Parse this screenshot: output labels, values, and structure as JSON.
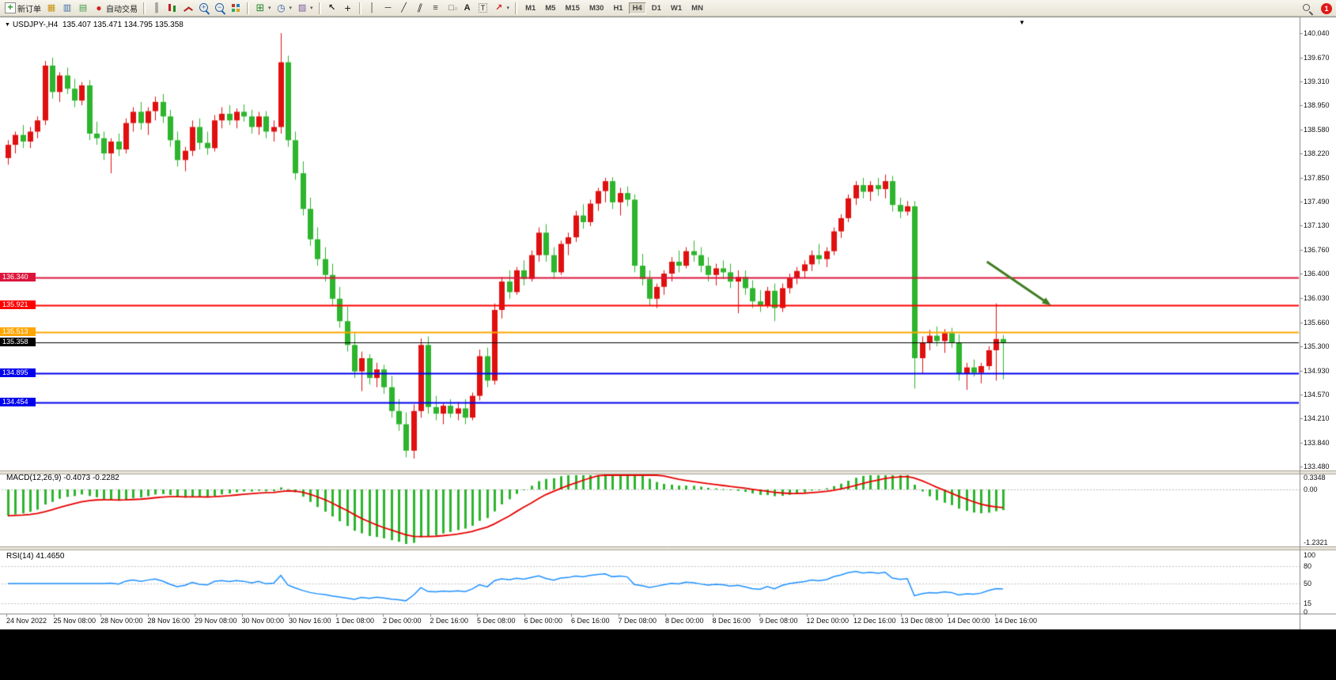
{
  "toolbar": {
    "items": [
      {
        "name": "new-order-button",
        "icon": "new-order-icon",
        "label": "新订单"
      },
      {
        "name": "open-chart-button",
        "icon": "chart-window-icon"
      },
      {
        "name": "market-watch-button",
        "icon": "market-watch-icon"
      },
      {
        "name": "navigator-button",
        "icon": "navigator-icon"
      },
      {
        "name": "autotrading-button",
        "icon": "autotrading-icon",
        "label": "自动交易"
      },
      {
        "sep": true
      },
      {
        "name": "bar-chart-button",
        "icon": "bar-chart-icon"
      },
      {
        "name": "candlestick-chart-button",
        "icon": "candlestick-icon"
      },
      {
        "name": "line-chart-button",
        "icon": "line-chart-icon"
      },
      {
        "name": "zoom-in-button",
        "icon": "zoom-in-icon"
      },
      {
        "name": "zoom-out-button",
        "icon": "zoom-out-icon"
      },
      {
        "name": "tile-windows-button",
        "icon": "tile-windows-icon"
      },
      {
        "sep": true
      },
      {
        "name": "indicators-button",
        "icon": "indicators-icon",
        "dropdown": true
      },
      {
        "name": "periods-button",
        "icon": "clock-icon",
        "dropdown": true
      },
      {
        "name": "templates-button",
        "icon": "template-icon",
        "dropdown": true
      },
      {
        "sep": true
      },
      {
        "name": "cursor-button",
        "icon": "cursor-icon"
      },
      {
        "name": "crosshair-button",
        "icon": "crosshair-icon"
      },
      {
        "sep": true
      },
      {
        "name": "vertical-line-button",
        "icon": "vertical-line-icon"
      },
      {
        "name": "horizontal-line-button",
        "icon": "horizontal-line-icon"
      },
      {
        "name": "trendline-button",
        "icon": "trendline-icon"
      },
      {
        "name": "channel-button",
        "icon": "channel-icon"
      },
      {
        "name": "fibonacci-button",
        "icon": "fibonacci-icon"
      },
      {
        "name": "shapes-button",
        "icon": "shapes-icon"
      },
      {
        "name": "text-button",
        "icon": "text-icon"
      },
      {
        "name": "label-button",
        "icon": "text-label-icon"
      },
      {
        "name": "arrows-button",
        "icon": "arrow-stamps-icon",
        "dropdown": true
      },
      {
        "sep": true
      }
    ],
    "timeframes": [
      "M1",
      "M5",
      "M15",
      "M30",
      "H1",
      "H4",
      "D1",
      "W1",
      "MN"
    ],
    "active_timeframe": "H4",
    "notification_badge": "1"
  },
  "chart_data": {
    "type": "candlestick",
    "symbol": "USDJPY-",
    "timeframe": "H4",
    "title_symbol": "USDJPY-,H4",
    "title_ohlc": "135.407 135.471 134.795 135.358",
    "current_ohlc": {
      "open": 135.407,
      "high": 135.471,
      "low": 134.795,
      "close": 135.358
    },
    "up_color": "#e01010",
    "down_color": "#2db52d",
    "y_axis_ticks": [
      "140.040",
      "139.670",
      "139.310",
      "138.950",
      "138.580",
      "138.220",
      "137.850",
      "137.490",
      "137.130",
      "136.760",
      "136.400",
      "136.030",
      "135.660",
      "135.300",
      "134.930",
      "134.570",
      "134.210",
      "133.840",
      "133.480"
    ],
    "x_axis_labels": [
      "24 Nov 2022",
      "25 Nov 08:00",
      "28 Nov 00:00",
      "28 Nov 16:00",
      "29 Nov 08:00",
      "30 Nov 00:00",
      "30 Nov 16:00",
      "1 Dec 08:00",
      "2 Dec 00:00",
      "2 Dec 16:00",
      "5 Dec 08:00",
      "6 Dec 00:00",
      "6 Dec 16:00",
      "7 Dec 08:00",
      "8 Dec 00:00",
      "8 Dec 16:00",
      "9 Dec 08:00",
      "12 Dec 00:00",
      "12 Dec 16:00",
      "13 Dec 08:00",
      "14 Dec 00:00",
      "14 Dec 16:00"
    ],
    "candles": [
      [
        138.15,
        138.42,
        138.05,
        138.35
      ],
      [
        138.35,
        138.55,
        138.22,
        138.5
      ],
      [
        138.5,
        138.65,
        138.3,
        138.4
      ],
      [
        138.4,
        138.62,
        138.3,
        138.55
      ],
      [
        138.55,
        138.78,
        138.45,
        138.72
      ],
      [
        138.72,
        139.62,
        138.65,
        139.55
      ],
      [
        139.55,
        139.67,
        139.05,
        139.15
      ],
      [
        139.15,
        139.45,
        139.0,
        139.4
      ],
      [
        139.4,
        139.52,
        139.12,
        139.2
      ],
      [
        139.2,
        139.35,
        138.92,
        139.02
      ],
      [
        139.02,
        139.3,
        138.95,
        139.25
      ],
      [
        139.25,
        139.33,
        138.42,
        138.52
      ],
      [
        138.52,
        138.7,
        138.35,
        138.45
      ],
      [
        138.45,
        138.55,
        138.12,
        138.22
      ],
      [
        138.22,
        138.45,
        137.92,
        138.4
      ],
      [
        138.4,
        138.52,
        138.18,
        138.28
      ],
      [
        138.28,
        138.75,
        138.22,
        138.68
      ],
      [
        138.68,
        138.92,
        138.55,
        138.85
      ],
      [
        138.85,
        139.0,
        138.58,
        138.68
      ],
      [
        138.68,
        138.92,
        138.5,
        138.86
      ],
      [
        138.86,
        139.08,
        138.72,
        139.0
      ],
      [
        139.0,
        139.12,
        138.68,
        138.78
      ],
      [
        138.78,
        138.88,
        138.32,
        138.42
      ],
      [
        138.42,
        138.55,
        138.02,
        138.12
      ],
      [
        138.12,
        138.32,
        137.95,
        138.26
      ],
      [
        138.26,
        138.72,
        138.18,
        138.62
      ],
      [
        138.62,
        138.75,
        138.28,
        138.38
      ],
      [
        138.38,
        138.55,
        138.2,
        138.3
      ],
      [
        138.3,
        138.8,
        138.25,
        138.72
      ],
      [
        138.72,
        138.92,
        138.6,
        138.82
      ],
      [
        138.82,
        138.95,
        138.65,
        138.72
      ],
      [
        138.72,
        138.9,
        138.6,
        138.85
      ],
      [
        138.85,
        138.96,
        138.7,
        138.78
      ],
      [
        138.78,
        138.88,
        138.52,
        138.62
      ],
      [
        138.62,
        138.85,
        138.5,
        138.78
      ],
      [
        138.78,
        138.86,
        138.45,
        138.55
      ],
      [
        138.55,
        138.72,
        138.4,
        138.62
      ],
      [
        138.62,
        140.04,
        138.52,
        139.6
      ],
      [
        139.6,
        139.7,
        138.32,
        138.42
      ],
      [
        138.42,
        138.55,
        137.82,
        137.92
      ],
      [
        137.92,
        138.1,
        137.28,
        137.38
      ],
      [
        137.38,
        137.55,
        136.82,
        136.92
      ],
      [
        136.92,
        137.1,
        136.52,
        136.62
      ],
      [
        136.62,
        136.8,
        136.28,
        136.38
      ],
      [
        136.38,
        136.55,
        135.92,
        136.02
      ],
      [
        136.02,
        136.2,
        135.58,
        135.68
      ],
      [
        135.68,
        135.9,
        135.22,
        135.32
      ],
      [
        135.32,
        135.5,
        134.82,
        134.92
      ],
      [
        134.92,
        135.22,
        134.62,
        135.12
      ],
      [
        135.12,
        135.18,
        134.72,
        134.82
      ],
      [
        134.82,
        135.05,
        134.68,
        134.95
      ],
      [
        134.95,
        135.02,
        134.58,
        134.68
      ],
      [
        134.68,
        134.85,
        134.22,
        134.32
      ],
      [
        134.32,
        134.5,
        134.02,
        134.12
      ],
      [
        134.12,
        134.3,
        133.62,
        133.72
      ],
      [
        133.72,
        134.42,
        133.6,
        134.32
      ],
      [
        134.32,
        135.42,
        134.22,
        135.32
      ],
      [
        135.32,
        135.45,
        134.28,
        134.38
      ],
      [
        134.38,
        134.55,
        134.18,
        134.28
      ],
      [
        134.28,
        134.45,
        134.12,
        134.4
      ],
      [
        134.4,
        134.5,
        134.22,
        134.28
      ],
      [
        134.28,
        134.46,
        134.18,
        134.36
      ],
      [
        134.36,
        134.5,
        134.12,
        134.22
      ],
      [
        134.22,
        134.6,
        134.18,
        134.55
      ],
      [
        134.55,
        135.25,
        134.48,
        135.15
      ],
      [
        135.15,
        135.28,
        134.68,
        134.78
      ],
      [
        134.78,
        135.95,
        134.72,
        135.85
      ],
      [
        135.85,
        136.35,
        135.72,
        136.28
      ],
      [
        136.28,
        136.45,
        136.02,
        136.12
      ],
      [
        136.12,
        136.5,
        136.08,
        136.45
      ],
      [
        136.45,
        136.6,
        136.22,
        136.32
      ],
      [
        136.32,
        136.75,
        136.28,
        136.68
      ],
      [
        136.68,
        137.1,
        136.58,
        137.02
      ],
      [
        137.02,
        137.15,
        136.58,
        136.68
      ],
      [
        136.68,
        136.8,
        136.32,
        136.42
      ],
      [
        136.42,
        136.9,
        136.38,
        136.85
      ],
      [
        136.85,
        137.02,
        136.68,
        136.95
      ],
      [
        136.95,
        137.35,
        136.88,
        137.28
      ],
      [
        137.28,
        137.45,
        137.08,
        137.18
      ],
      [
        137.18,
        137.52,
        137.12,
        137.46
      ],
      [
        137.46,
        137.7,
        137.35,
        137.65
      ],
      [
        137.65,
        137.85,
        137.48,
        137.8
      ],
      [
        137.8,
        137.86,
        137.38,
        137.48
      ],
      [
        137.48,
        137.7,
        137.28,
        137.62
      ],
      [
        137.62,
        137.72,
        137.42,
        137.52
      ],
      [
        137.52,
        137.6,
        136.42,
        136.52
      ],
      [
        136.52,
        136.7,
        136.22,
        136.32
      ],
      [
        136.32,
        136.45,
        135.92,
        136.02
      ],
      [
        136.02,
        136.25,
        135.88,
        136.2
      ],
      [
        136.2,
        136.45,
        136.08,
        136.4
      ],
      [
        136.4,
        136.65,
        136.28,
        136.58
      ],
      [
        136.58,
        136.75,
        136.42,
        136.52
      ],
      [
        136.52,
        136.8,
        136.48,
        136.74
      ],
      [
        136.74,
        136.9,
        136.58,
        136.68
      ],
      [
        136.68,
        136.8,
        136.42,
        136.52
      ],
      [
        136.52,
        136.65,
        136.28,
        136.38
      ],
      [
        136.38,
        136.55,
        136.22,
        136.48
      ],
      [
        136.48,
        136.6,
        136.32,
        136.42
      ],
      [
        136.42,
        136.55,
        136.18,
        136.28
      ],
      [
        136.28,
        136.45,
        135.8,
        136.35
      ],
      [
        136.35,
        136.45,
        136.08,
        136.18
      ],
      [
        136.18,
        136.3,
        135.88,
        135.98
      ],
      [
        135.98,
        136.15,
        135.82,
        135.92
      ],
      [
        135.92,
        136.2,
        135.88,
        136.14
      ],
      [
        136.14,
        136.25,
        135.68,
        135.88
      ],
      [
        135.88,
        136.25,
        135.82,
        136.18
      ],
      [
        136.18,
        136.4,
        136.1,
        136.34
      ],
      [
        136.34,
        136.5,
        136.24,
        136.44
      ],
      [
        136.44,
        136.6,
        136.34,
        136.54
      ],
      [
        136.54,
        136.75,
        136.44,
        136.68
      ],
      [
        136.68,
        136.85,
        136.54,
        136.62
      ],
      [
        136.62,
        136.8,
        136.5,
        136.74
      ],
      [
        136.74,
        137.1,
        136.68,
        137.04
      ],
      [
        137.04,
        137.3,
        136.94,
        137.24
      ],
      [
        137.24,
        137.6,
        137.18,
        137.54
      ],
      [
        137.54,
        137.8,
        137.44,
        137.74
      ],
      [
        137.74,
        137.85,
        137.54,
        137.64
      ],
      [
        137.64,
        137.8,
        137.5,
        137.74
      ],
      [
        137.74,
        137.85,
        137.58,
        137.68
      ],
      [
        137.68,
        137.9,
        137.54,
        137.8
      ],
      [
        137.8,
        137.88,
        137.34,
        137.44
      ],
      [
        137.44,
        137.55,
        137.24,
        137.34
      ],
      [
        137.34,
        137.5,
        137.28,
        137.42
      ],
      [
        137.42,
        137.5,
        134.66,
        135.12
      ],
      [
        135.12,
        135.45,
        134.88,
        135.35
      ],
      [
        135.35,
        135.55,
        135.24,
        135.46
      ],
      [
        135.46,
        135.6,
        135.3,
        135.38
      ],
      [
        135.38,
        135.56,
        135.2,
        135.5
      ],
      [
        135.5,
        135.58,
        135.28,
        135.36
      ],
      [
        135.36,
        135.48,
        134.78,
        134.88
      ],
      [
        134.88,
        135.05,
        134.64,
        134.98
      ],
      [
        134.98,
        135.1,
        134.84,
        134.9
      ],
      [
        134.9,
        135.05,
        134.74,
        135.0
      ],
      [
        135.0,
        135.3,
        134.94,
        135.24
      ],
      [
        135.24,
        135.95,
        134.78,
        135.41
      ],
      [
        135.41,
        135.47,
        134.8,
        135.36
      ]
    ],
    "horizontal_lines": [
      {
        "price": 136.34,
        "label": "136.340",
        "color": "#dc143c",
        "width": 2
      },
      {
        "price": 135.921,
        "label": "135.921",
        "color": "#ff0000",
        "width": 2
      },
      {
        "price": 135.513,
        "label": "135.513",
        "color": "#ffa500",
        "width": 2
      },
      {
        "price": 134.895,
        "label": "134.895",
        "color": "#0000ee",
        "width": 2
      },
      {
        "price": 134.454,
        "label": "134.454",
        "color": "#0000ee",
        "width": 2
      }
    ],
    "bid_line": {
      "price": 135.358,
      "label": "135.358",
      "color": "#000000",
      "width": 1
    },
    "trend_arrow": {
      "from_bar": 132.8,
      "from_price": 136.58,
      "to_bar": 141.5,
      "to_price": 135.92,
      "color": "#3f7d20"
    },
    "indicators": [
      {
        "name": "MACD",
        "label": "MACD(12,26,9)",
        "display_values": "-0.4073 -0.2282",
        "macd": -0.4073,
        "signal": -0.2282,
        "axis_labels": [
          "0.3348",
          "0.00",
          "-1.2321"
        ],
        "histogram_color": "#2db52d",
        "signal_color": "#e80000"
      },
      {
        "name": "RSI",
        "label": "RSI(14)",
        "display_values": "41.4650",
        "value": 41.465,
        "axis_labels": [
          "100",
          "80",
          "50",
          "15",
          "0"
        ],
        "levels": [
          80,
          50,
          15
        ],
        "line_color": "#1e90ff"
      }
    ]
  }
}
